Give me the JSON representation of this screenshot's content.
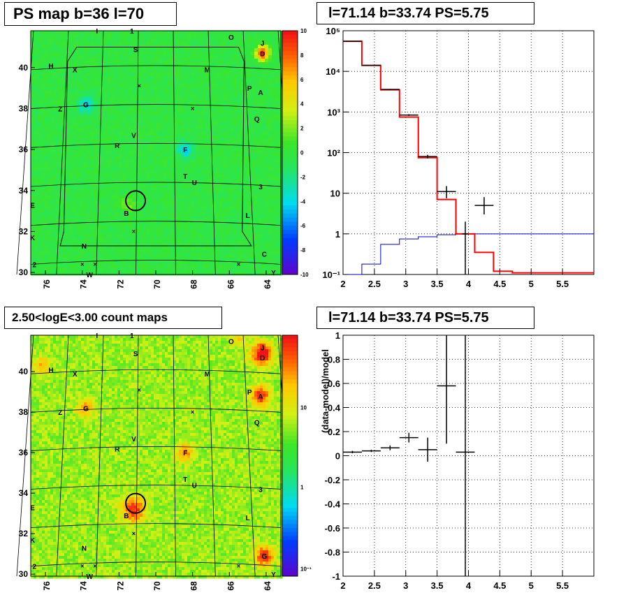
{
  "titles": {
    "map_top": "PS map b=36 l=70",
    "spec_top": "l=71.14 b=33.74 PS=5.75",
    "map_bottom": "2.50<logE<3.00 count maps",
    "ratio_bottom": "l=71.14 b=33.74 PS=5.75"
  },
  "colors": {
    "data": "#000000",
    "model": "#ff0000",
    "background_model": "#0000cc",
    "map_base": "#33dd44"
  },
  "source_labels": [
    {
      "name": "I",
      "l": 73.2,
      "b": 41.8
    },
    {
      "name": "1",
      "l": 71.3,
      "b": 41.8
    },
    {
      "name": "O",
      "l": 65.9,
      "b": 41.5
    },
    {
      "name": "J",
      "l": 64.2,
      "b": 41.2
    },
    {
      "name": "D",
      "l": 64.2,
      "b": 40.7
    },
    {
      "name": "S",
      "l": 71.1,
      "b": 40.9
    },
    {
      "name": "H",
      "l": 75.7,
      "b": 40.1
    },
    {
      "name": "X",
      "l": 74.4,
      "b": 39.9
    },
    {
      "name": "M",
      "l": 67.2,
      "b": 39.9
    },
    {
      "name": "P",
      "l": 64.9,
      "b": 39.0
    },
    {
      "name": "A",
      "l": 64.3,
      "b": 38.8
    },
    {
      "name": "Z",
      "l": 75.2,
      "b": 38.0
    },
    {
      "name": "G",
      "l": 73.8,
      "b": 38.2
    },
    {
      "name": "Q",
      "l": 64.5,
      "b": 37.5
    },
    {
      "name": "V",
      "l": 71.2,
      "b": 36.7
    },
    {
      "name": "R",
      "l": 72.1,
      "b": 36.2
    },
    {
      "name": "F",
      "l": 68.4,
      "b": 36.0
    },
    {
      "name": "T",
      "l": 68.4,
      "b": 34.7
    },
    {
      "name": "U",
      "l": 67.9,
      "b": 34.4
    },
    {
      "name": "3",
      "l": 64.3,
      "b": 34.2
    },
    {
      "name": "E",
      "l": 76.7,
      "b": 33.3
    },
    {
      "name": "B",
      "l": 71.6,
      "b": 32.9
    },
    {
      "name": "L",
      "l": 65.0,
      "b": 32.8
    },
    {
      "name": "K",
      "l": 76.7,
      "b": 31.7
    },
    {
      "name": "N",
      "l": 73.9,
      "b": 31.3
    },
    {
      "name": "C",
      "l": 64.1,
      "b": 30.9
    },
    {
      "name": "2",
      "l": 76.6,
      "b": 30.4
    },
    {
      "name": "W",
      "l": 73.6,
      "b": 29.9
    },
    {
      "name": "Y",
      "l": 63.6,
      "b": 30.0
    }
  ],
  "bottom_map_extra_labels": [
    {
      "name": "G",
      "l": 64.1,
      "b": 30.9
    }
  ],
  "chart_data": [
    {
      "type": "heatmap",
      "xlim": [
        76.8,
        63.2
      ],
      "ylim": [
        29.9,
        41.8
      ],
      "xticks": [
        76,
        74,
        72,
        70,
        68,
        66,
        64
      ],
      "yticks": [
        30,
        32,
        34,
        36,
        38,
        40
      ],
      "colorbar": {
        "min": -10,
        "max": 10,
        "ticks": [
          10,
          8,
          6,
          4,
          2,
          0,
          -2,
          -4,
          -6,
          -8,
          -10
        ]
      },
      "highlight_circle": {
        "l": 71.1,
        "b": 33.5
      }
    },
    {
      "type": "line",
      "log_y": true,
      "xlim": [
        2,
        6
      ],
      "ylim": [
        0.1,
        100000
      ],
      "xticks": [
        2,
        2.5,
        3,
        3.5,
        4,
        4.5,
        5,
        5.5
      ],
      "yticks": [
        {
          "v": 0.1,
          "label": "10⁻¹"
        },
        {
          "v": 1,
          "label": "1"
        },
        {
          "v": 10,
          "label": "10"
        },
        {
          "v": 100,
          "label": "10²"
        },
        {
          "v": 1000,
          "label": "10³"
        },
        {
          "v": 10000,
          "label": "10⁴"
        },
        {
          "v": 100000,
          "label": "10⁵"
        }
      ],
      "bin_edges": [
        2.0,
        2.3,
        2.6,
        2.9,
        3.2,
        3.5,
        3.8,
        4.1,
        4.4,
        4.7,
        5.0,
        5.3,
        5.6,
        6.0
      ],
      "model_values": [
        55000,
        14000,
        3500,
        750,
        75,
        7,
        1.0,
        0.35,
        0.12,
        0.11,
        0.11,
        0.11,
        0.11
      ],
      "background_values": [
        0.1,
        0.18,
        0.55,
        0.75,
        0.85,
        0.95,
        1.0,
        1.0,
        1.0,
        1.0,
        1.0,
        1.0,
        1.0
      ],
      "data_points": [
        {
          "x": 2.15,
          "xerr": 0.15,
          "y": 55000,
          "ylo": 54000,
          "yhi": 56000
        },
        {
          "x": 2.45,
          "xerr": 0.15,
          "y": 14000,
          "ylo": 13800,
          "yhi": 14200
        },
        {
          "x": 2.75,
          "xerr": 0.15,
          "y": 3600,
          "ylo": 3500,
          "yhi": 3700
        },
        {
          "x": 3.05,
          "xerr": 0.15,
          "y": 840,
          "ylo": 800,
          "yhi": 880
        },
        {
          "x": 3.35,
          "xerr": 0.15,
          "y": 80,
          "ylo": 72,
          "yhi": 88
        },
        {
          "x": 3.65,
          "xerr": 0.15,
          "y": 11,
          "ylo": 7.5,
          "yhi": 15
        },
        {
          "x": 3.95,
          "xerr": 0.05,
          "y": 1,
          "ylo": 0.1,
          "yhi": 2
        },
        {
          "x": 4.25,
          "xerr": 0.15,
          "y": 5,
          "ylo": 3,
          "yhi": 8
        }
      ]
    },
    {
      "type": "heatmap",
      "xlim": [
        76.8,
        63.2
      ],
      "ylim": [
        29.9,
        41.8
      ],
      "xticks": [
        76,
        74,
        72,
        70,
        68,
        66,
        64
      ],
      "yticks": [
        30,
        32,
        34,
        36,
        38,
        40
      ],
      "colorbar": {
        "log": true,
        "ticks": [
          {
            "v": 10,
            "label": "10"
          },
          {
            "v": 1,
            "label": "1"
          },
          {
            "v": 0.1,
            "label": "10⁻¹"
          }
        ]
      },
      "highlight_circle": {
        "l": 71.1,
        "b": 33.5
      }
    },
    {
      "type": "scatter",
      "xlim": [
        2,
        6
      ],
      "ylim": [
        -1,
        1
      ],
      "ylabel": "(data-model)/model",
      "xticks": [
        2,
        2.5,
        3,
        3.5,
        4,
        4.5,
        5,
        5.5
      ],
      "yticks": [
        -1,
        -0.8,
        -0.6,
        -0.4,
        -0.2,
        0,
        0.2,
        0.4,
        0.6,
        0.8,
        1
      ],
      "points": [
        {
          "x": 2.15,
          "xerr": 0.15,
          "y": 0.03,
          "yerr": 0.01
        },
        {
          "x": 2.45,
          "xerr": 0.15,
          "y": 0.04,
          "yerr": 0.01
        },
        {
          "x": 2.75,
          "xerr": 0.15,
          "y": 0.065,
          "yerr": 0.02
        },
        {
          "x": 3.05,
          "xerr": 0.15,
          "y": 0.15,
          "yerr": 0.04
        },
        {
          "x": 3.35,
          "xerr": 0.15,
          "y": 0.05,
          "yerr": 0.1
        },
        {
          "x": 3.65,
          "xerr": 0.15,
          "y": 0.58,
          "yerr": 0.48
        },
        {
          "x": 3.95,
          "xerr": 0.15,
          "y": 0.03,
          "yerr": 1.1
        }
      ]
    }
  ]
}
